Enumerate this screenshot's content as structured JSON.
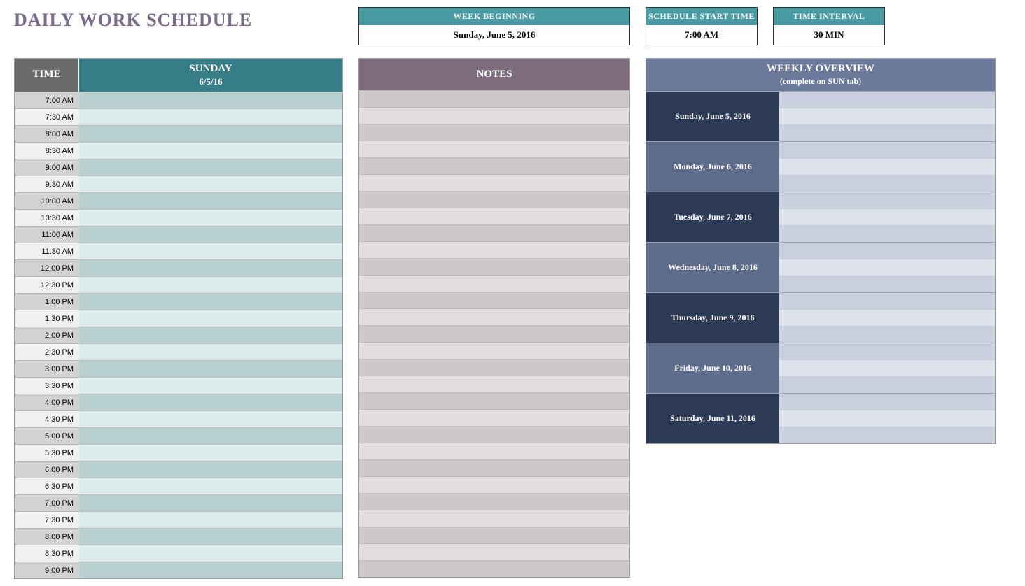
{
  "title": "DAILY WORK SCHEDULE",
  "info": {
    "week_label": "WEEK BEGINNING",
    "week_value": "Sunday, June 5, 2016",
    "start_label": "SCHEDULE START TIME",
    "start_value": "7:00 AM",
    "interval_label": "TIME INTERVAL",
    "interval_value": "30 MIN"
  },
  "schedule": {
    "time_header": "TIME",
    "day_name": "SUNDAY",
    "day_date": "6/5/16",
    "time_col_bg_even": "#d2d2d2",
    "time_col_bg_odd": "#f0f0f0",
    "event_col_bg_even": "#b9d0d0",
    "event_col_bg_odd": "#dcebeb",
    "header_time_bg": "#6a6a6a",
    "header_day_bg": "#377d87",
    "rows": [
      "7:00 AM",
      "7:30 AM",
      "8:00 AM",
      "8:30 AM",
      "9:00 AM",
      "9:30 AM",
      "10:00 AM",
      "10:30 AM",
      "11:00 AM",
      "11:30 AM",
      "12:00 PM",
      "12:30 PM",
      "1:00 PM",
      "1:30 PM",
      "2:00 PM",
      "2:30 PM",
      "3:00 PM",
      "3:30 PM",
      "4:00 PM",
      "4:30 PM",
      "5:00 PM",
      "5:30 PM",
      "6:00 PM",
      "6:30 PM",
      "7:00 PM",
      "7:30 PM",
      "8:00 PM",
      "8:30 PM",
      "9:00 PM"
    ]
  },
  "notes": {
    "header": "NOTES",
    "header_bg": "#7d6c7c",
    "row_bg_even": "#cdc6cb",
    "row_bg_odd": "#e3dde1",
    "row_count": 29
  },
  "overview": {
    "header": "WEEKLY OVERVIEW",
    "sub": "(complete on SUN tab)",
    "header_bg": "#6b7a9a",
    "label_bg_dark": "#2d3a56",
    "label_bg_light": "#5d6c8b",
    "value_bg_a": "#c9cfdd",
    "value_bg_b": "#dde1ea",
    "days": [
      "Sunday, June 5, 2016",
      "Monday, June 6, 2016",
      "Tuesday, June 7, 2016",
      "Wednesday, June 8, 2016",
      "Thursday, June 9, 2016",
      "Friday, June 10, 2016",
      "Saturday, June 11, 2016"
    ]
  },
  "colors": {
    "title": "#7a6b8a",
    "teal_header": "#4a9aa3",
    "border": "#999999"
  }
}
